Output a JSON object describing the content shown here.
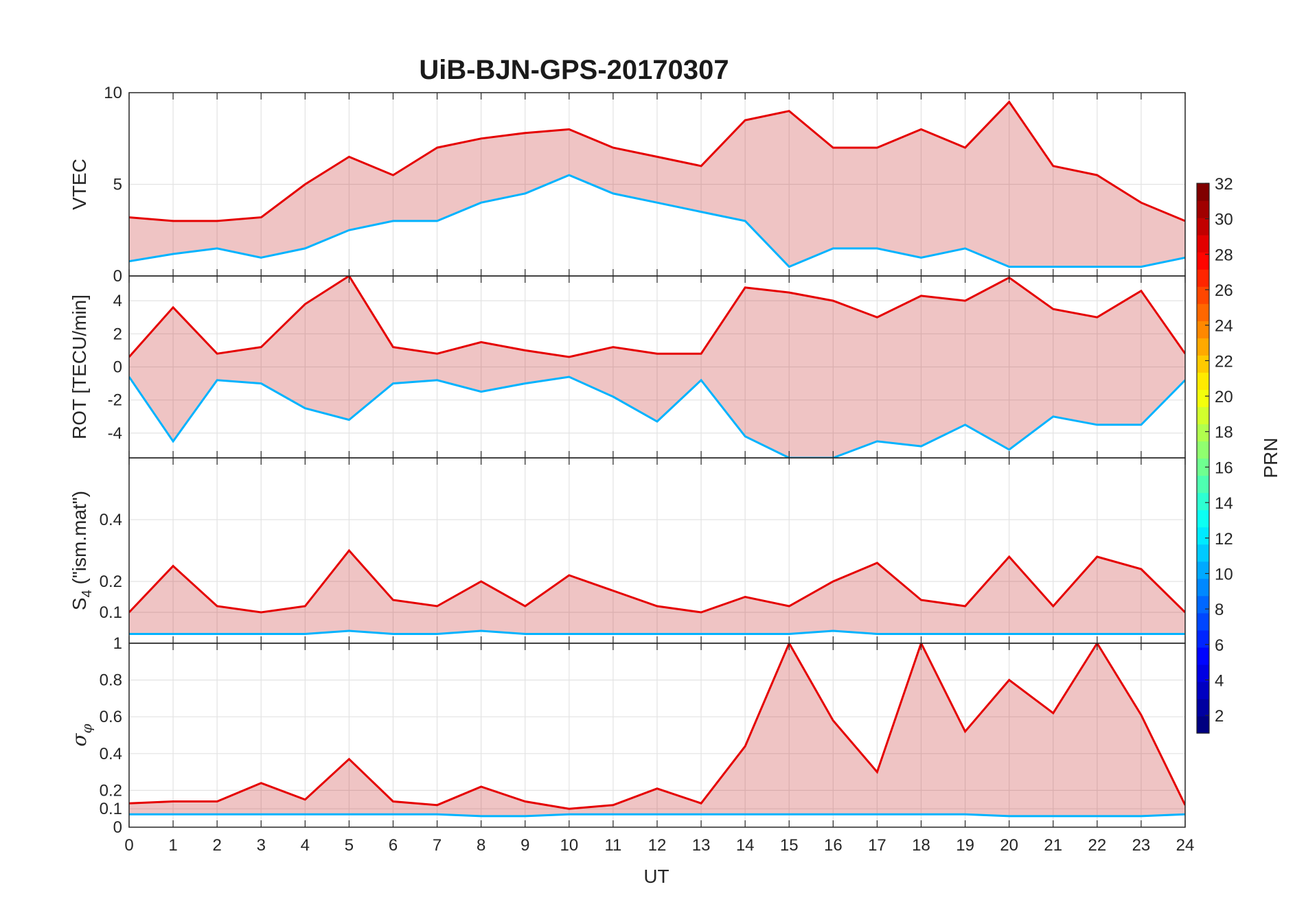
{
  "chart_data": {
    "type": "line",
    "title": "UiB-BJN-GPS-20170307",
    "xlabel": "UT",
    "x_ticks": [
      "0",
      "1",
      "2",
      "3",
      "4",
      "5",
      "6",
      "7",
      "8",
      "9",
      "10",
      "11",
      "12",
      "13",
      "14",
      "15",
      "16",
      "17",
      "18",
      "19",
      "20",
      "21",
      "22",
      "23",
      "24"
    ],
    "xlim": [
      0,
      24
    ],
    "grid": true,
    "colorbar": {
      "label": "PRN",
      "range": [
        1,
        32
      ],
      "ticks": [
        "2",
        "4",
        "6",
        "8",
        "10",
        "12",
        "14",
        "16",
        "18",
        "20",
        "22",
        "24",
        "26",
        "28",
        "30",
        "32"
      ],
      "colormap": "jet",
      "levels": 32
    },
    "panels": [
      {
        "ylabel": "VTEC",
        "ylim": [
          0,
          10
        ],
        "y_ticks": [
          "0",
          "5",
          "10"
        ],
        "envelope": [
          {
            "x": 0,
            "lo": 0.8,
            "hi": 3.2
          },
          {
            "x": 1,
            "lo": 1.2,
            "hi": 3.0
          },
          {
            "x": 2,
            "lo": 1.5,
            "hi": 3.0
          },
          {
            "x": 3,
            "lo": 1.0,
            "hi": 3.2
          },
          {
            "x": 4,
            "lo": 1.5,
            "hi": 5.0
          },
          {
            "x": 5,
            "lo": 2.5,
            "hi": 6.5
          },
          {
            "x": 6,
            "lo": 3.0,
            "hi": 5.5
          },
          {
            "x": 7,
            "lo": 3.0,
            "hi": 7.0
          },
          {
            "x": 8,
            "lo": 4.0,
            "hi": 7.5
          },
          {
            "x": 9,
            "lo": 4.5,
            "hi": 7.8
          },
          {
            "x": 10,
            "lo": 5.5,
            "hi": 8.0
          },
          {
            "x": 11,
            "lo": 4.5,
            "hi": 7.0
          },
          {
            "x": 12,
            "lo": 4.0,
            "hi": 6.5
          },
          {
            "x": 13,
            "lo": 3.5,
            "hi": 6.0
          },
          {
            "x": 14,
            "lo": 3.0,
            "hi": 8.5
          },
          {
            "x": 15,
            "lo": 0.5,
            "hi": 9.0
          },
          {
            "x": 16,
            "lo": 1.5,
            "hi": 7.0
          },
          {
            "x": 17,
            "lo": 1.5,
            "hi": 7.0
          },
          {
            "x": 18,
            "lo": 1.0,
            "hi": 8.0
          },
          {
            "x": 19,
            "lo": 1.5,
            "hi": 7.0
          },
          {
            "x": 20,
            "lo": 0.5,
            "hi": 9.5
          },
          {
            "x": 21,
            "lo": 0.5,
            "hi": 6.0
          },
          {
            "x": 22,
            "lo": 0.5,
            "hi": 5.5
          },
          {
            "x": 23,
            "lo": 0.5,
            "hi": 4.0
          },
          {
            "x": 24,
            "lo": 1.0,
            "hi": 3.0
          }
        ]
      },
      {
        "ylabel": "ROT [TECU/min]",
        "ylim": [
          -5.5,
          5.5
        ],
        "y_ticks": [
          "-4",
          "-2",
          "0",
          "2",
          "4"
        ],
        "envelope": [
          {
            "x": 0,
            "lo": -0.6,
            "hi": 0.6
          },
          {
            "x": 1,
            "lo": -4.5,
            "hi": 3.6
          },
          {
            "x": 2,
            "lo": -0.8,
            "hi": 0.8
          },
          {
            "x": 3,
            "lo": -1.0,
            "hi": 1.2
          },
          {
            "x": 4,
            "lo": -2.5,
            "hi": 3.8
          },
          {
            "x": 5,
            "lo": -3.2,
            "hi": 5.5
          },
          {
            "x": 6,
            "lo": -1.0,
            "hi": 1.2
          },
          {
            "x": 7,
            "lo": -0.8,
            "hi": 0.8
          },
          {
            "x": 8,
            "lo": -1.5,
            "hi": 1.5
          },
          {
            "x": 9,
            "lo": -1.0,
            "hi": 1.0
          },
          {
            "x": 10,
            "lo": -0.6,
            "hi": 0.6
          },
          {
            "x": 11,
            "lo": -1.8,
            "hi": 1.2
          },
          {
            "x": 12,
            "lo": -3.3,
            "hi": 0.8
          },
          {
            "x": 13,
            "lo": -0.8,
            "hi": 0.8
          },
          {
            "x": 14,
            "lo": -4.2,
            "hi": 4.8
          },
          {
            "x": 15,
            "lo": -5.5,
            "hi": 4.5
          },
          {
            "x": 16,
            "lo": -5.5,
            "hi": 4.0
          },
          {
            "x": 17,
            "lo": -4.5,
            "hi": 3.0
          },
          {
            "x": 18,
            "lo": -4.8,
            "hi": 4.3
          },
          {
            "x": 19,
            "lo": -3.5,
            "hi": 4.0
          },
          {
            "x": 20,
            "lo": -5.0,
            "hi": 5.4
          },
          {
            "x": 21,
            "lo": -3.0,
            "hi": 3.5
          },
          {
            "x": 22,
            "lo": -3.5,
            "hi": 3.0
          },
          {
            "x": 23,
            "lo": -3.5,
            "hi": 4.6
          },
          {
            "x": 24,
            "lo": -0.8,
            "hi": 0.8
          }
        ]
      },
      {
        "ylabel": "S4 (\"ism.mat\")",
        "ylabel_main": "S",
        "ylabel_sub": "4",
        "ylabel_rest": " (\"ism.mat\")",
        "ylim": [
          0,
          0.6
        ],
        "y_ticks": [
          "0.1",
          "0.2",
          "0.4"
        ],
        "envelope": [
          {
            "x": 0,
            "lo": 0.03,
            "hi": 0.1
          },
          {
            "x": 1,
            "lo": 0.03,
            "hi": 0.25
          },
          {
            "x": 2,
            "lo": 0.03,
            "hi": 0.12
          },
          {
            "x": 3,
            "lo": 0.03,
            "hi": 0.1
          },
          {
            "x": 4,
            "lo": 0.03,
            "hi": 0.12
          },
          {
            "x": 5,
            "lo": 0.04,
            "hi": 0.3
          },
          {
            "x": 6,
            "lo": 0.03,
            "hi": 0.14
          },
          {
            "x": 7,
            "lo": 0.03,
            "hi": 0.12
          },
          {
            "x": 8,
            "lo": 0.04,
            "hi": 0.2
          },
          {
            "x": 9,
            "lo": 0.03,
            "hi": 0.12
          },
          {
            "x": 10,
            "lo": 0.03,
            "hi": 0.22
          },
          {
            "x": 11,
            "lo": 0.03,
            "hi": 0.17
          },
          {
            "x": 12,
            "lo": 0.03,
            "hi": 0.12
          },
          {
            "x": 13,
            "lo": 0.03,
            "hi": 0.1
          },
          {
            "x": 14,
            "lo": 0.03,
            "hi": 0.15
          },
          {
            "x": 15,
            "lo": 0.03,
            "hi": 0.12
          },
          {
            "x": 16,
            "lo": 0.04,
            "hi": 0.2
          },
          {
            "x": 17,
            "lo": 0.03,
            "hi": 0.26
          },
          {
            "x": 18,
            "lo": 0.03,
            "hi": 0.14
          },
          {
            "x": 19,
            "lo": 0.03,
            "hi": 0.12
          },
          {
            "x": 20,
            "lo": 0.03,
            "hi": 0.28
          },
          {
            "x": 21,
            "lo": 0.03,
            "hi": 0.12
          },
          {
            "x": 22,
            "lo": 0.03,
            "hi": 0.28
          },
          {
            "x": 23,
            "lo": 0.03,
            "hi": 0.24
          },
          {
            "x": 24,
            "lo": 0.03,
            "hi": 0.1
          }
        ]
      },
      {
        "ylabel": "σφ",
        "ylabel_main": "σ",
        "ylabel_sub": "φ",
        "ylim": [
          0,
          1
        ],
        "y_ticks": [
          "0",
          "0.1",
          "0.2",
          "0.4",
          "0.6",
          "0.8",
          "1"
        ],
        "envelope": [
          {
            "x": 0,
            "lo": 0.07,
            "hi": 0.13
          },
          {
            "x": 1,
            "lo": 0.07,
            "hi": 0.14
          },
          {
            "x": 2,
            "lo": 0.07,
            "hi": 0.14
          },
          {
            "x": 3,
            "lo": 0.07,
            "hi": 0.24
          },
          {
            "x": 4,
            "lo": 0.07,
            "hi": 0.15
          },
          {
            "x": 5,
            "lo": 0.07,
            "hi": 0.37
          },
          {
            "x": 6,
            "lo": 0.07,
            "hi": 0.14
          },
          {
            "x": 7,
            "lo": 0.07,
            "hi": 0.12
          },
          {
            "x": 8,
            "lo": 0.06,
            "hi": 0.22
          },
          {
            "x": 9,
            "lo": 0.06,
            "hi": 0.14
          },
          {
            "x": 10,
            "lo": 0.07,
            "hi": 0.1
          },
          {
            "x": 11,
            "lo": 0.07,
            "hi": 0.12
          },
          {
            "x": 12,
            "lo": 0.07,
            "hi": 0.21
          },
          {
            "x": 13,
            "lo": 0.07,
            "hi": 0.13
          },
          {
            "x": 14,
            "lo": 0.07,
            "hi": 0.44
          },
          {
            "x": 15,
            "lo": 0.07,
            "hi": 1.0
          },
          {
            "x": 16,
            "lo": 0.07,
            "hi": 0.58
          },
          {
            "x": 17,
            "lo": 0.07,
            "hi": 0.3
          },
          {
            "x": 18,
            "lo": 0.07,
            "hi": 1.0
          },
          {
            "x": 19,
            "lo": 0.07,
            "hi": 0.52
          },
          {
            "x": 20,
            "lo": 0.06,
            "hi": 0.8
          },
          {
            "x": 21,
            "lo": 0.06,
            "hi": 0.62
          },
          {
            "x": 22,
            "lo": 0.06,
            "hi": 1.0
          },
          {
            "x": 23,
            "lo": 0.06,
            "hi": 0.61
          },
          {
            "x": 24,
            "lo": 0.07,
            "hi": 0.12
          }
        ]
      }
    ]
  }
}
